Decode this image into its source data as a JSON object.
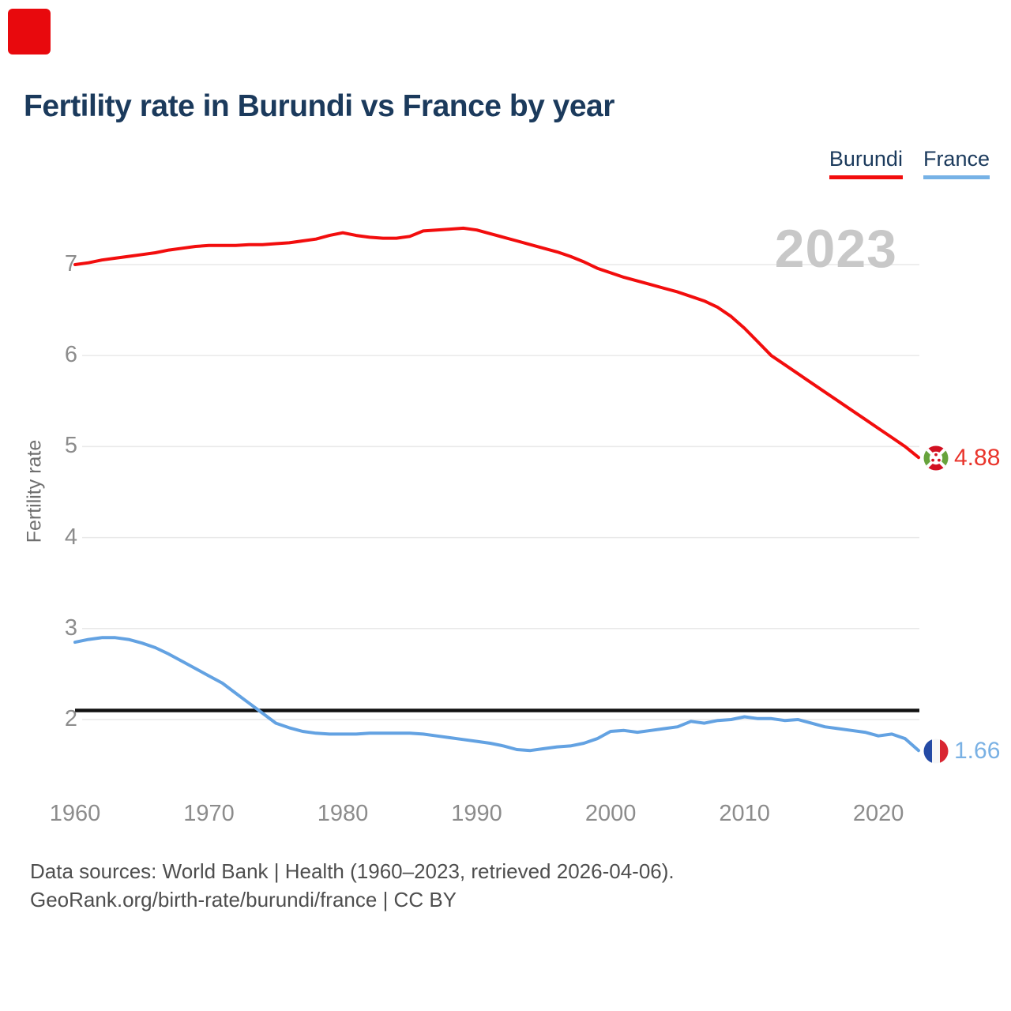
{
  "title": "Fertility rate in Burundi vs France by year",
  "legend": [
    {
      "label": "Burundi",
      "color": "#f20d0d"
    },
    {
      "label": "France",
      "color": "#76b2e6"
    }
  ],
  "y_axis_title": "Fertility rate",
  "end_labels": [
    {
      "series": "Burundi",
      "value": "4.88",
      "numeric": 4.88,
      "color": "#e9352c",
      "flag": "burundi-flag"
    },
    {
      "series": "France",
      "value": "1.66",
      "numeric": 1.66,
      "color": "#7ab1e4",
      "flag": "france-flag"
    }
  ],
  "footer": {
    "line1": "Data sources: World Bank | Health (1960–2023, retrieved 2026-04-06).",
    "line2": "GeoRank.org/birth-rate/burundi/france | CC BY"
  },
  "colors": {
    "title": "#1b3a5c",
    "axis_text": "#8c8c8c",
    "axis_title": "#6f6f6f",
    "gridline": "#e9e9e9",
    "reference_line": "#111111",
    "watermark": "#c8c8c8",
    "footer": "#4e4e4e",
    "marker_red": "#e8090d",
    "burundi_flag_red": "#d21021",
    "burundi_flag_green": "#67a33c",
    "france_flag_blue": "#244aa5",
    "france_flag_red": "#d92632"
  },
  "chart_data": {
    "type": "line",
    "title": "Fertility rate in Burundi vs France by year",
    "xlabel": "",
    "ylabel": "Fertility rate",
    "watermark_year": "2023",
    "grid": true,
    "legend_position": "top-right",
    "yticks": [
      2,
      3,
      4,
      5,
      6,
      7
    ],
    "xticks": [
      1960,
      1970,
      1980,
      1990,
      2000,
      2010,
      2020
    ],
    "ylim": [
      1.5,
      7.6
    ],
    "xlim": [
      1960,
      2023
    ],
    "reference_line": 2.1,
    "x": [
      1960,
      1961,
      1962,
      1963,
      1964,
      1965,
      1966,
      1967,
      1968,
      1969,
      1970,
      1971,
      1972,
      1973,
      1974,
      1975,
      1976,
      1977,
      1978,
      1979,
      1980,
      1981,
      1982,
      1983,
      1984,
      1985,
      1986,
      1987,
      1988,
      1989,
      1990,
      1991,
      1992,
      1993,
      1994,
      1995,
      1996,
      1997,
      1998,
      1999,
      2000,
      2001,
      2002,
      2003,
      2004,
      2005,
      2006,
      2007,
      2008,
      2009,
      2010,
      2011,
      2012,
      2013,
      2014,
      2015,
      2016,
      2017,
      2018,
      2019,
      2020,
      2021,
      2022,
      2023
    ],
    "series": [
      {
        "name": "Burundi",
        "color": "#f20d0d",
        "values": [
          7.0,
          7.02,
          7.05,
          7.07,
          7.09,
          7.11,
          7.13,
          7.16,
          7.18,
          7.2,
          7.21,
          7.21,
          7.21,
          7.22,
          7.22,
          7.23,
          7.24,
          7.26,
          7.28,
          7.32,
          7.35,
          7.32,
          7.3,
          7.29,
          7.29,
          7.31,
          7.37,
          7.38,
          7.39,
          7.4,
          7.38,
          7.34,
          7.3,
          7.26,
          7.22,
          7.18,
          7.14,
          7.09,
          7.03,
          6.96,
          6.91,
          6.86,
          6.82,
          6.78,
          6.74,
          6.7,
          6.65,
          6.6,
          6.53,
          6.43,
          6.3,
          6.15,
          6.0,
          5.9,
          5.8,
          5.7,
          5.6,
          5.5,
          5.4,
          5.3,
          5.2,
          5.1,
          5.0,
          4.88
        ]
      },
      {
        "name": "France",
        "color": "#63a2e2",
        "values": [
          2.85,
          2.88,
          2.9,
          2.9,
          2.88,
          2.84,
          2.79,
          2.72,
          2.64,
          2.56,
          2.48,
          2.4,
          2.29,
          2.18,
          2.07,
          1.96,
          1.91,
          1.87,
          1.85,
          1.84,
          1.84,
          1.84,
          1.85,
          1.85,
          1.85,
          1.85,
          1.84,
          1.82,
          1.8,
          1.78,
          1.76,
          1.74,
          1.71,
          1.67,
          1.66,
          1.68,
          1.7,
          1.71,
          1.74,
          1.79,
          1.87,
          1.88,
          1.86,
          1.88,
          1.9,
          1.92,
          1.98,
          1.96,
          1.99,
          2.0,
          2.03,
          2.01,
          2.01,
          1.99,
          2.0,
          1.96,
          1.92,
          1.9,
          1.88,
          1.86,
          1.82,
          1.84,
          1.79,
          1.66
        ]
      }
    ]
  }
}
